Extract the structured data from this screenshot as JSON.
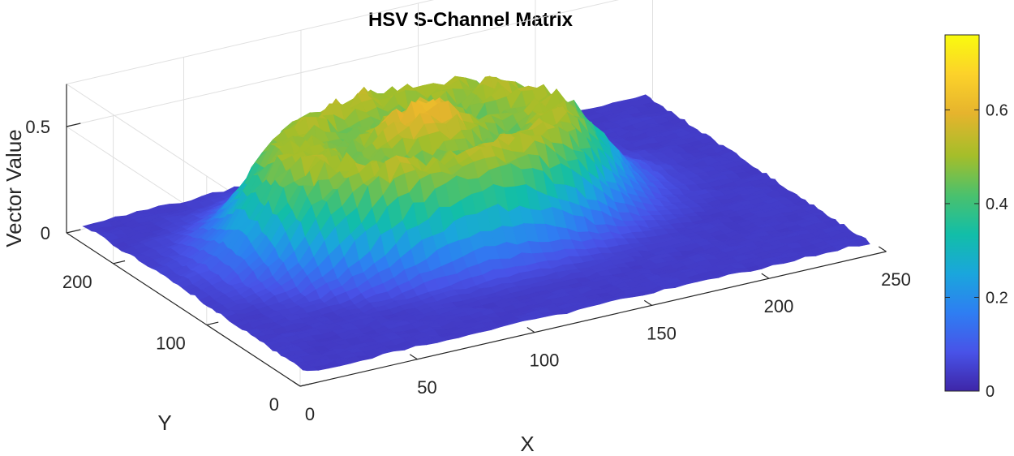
{
  "chart_data": {
    "type": "surface3d",
    "title": "HSV S-Channel Matrix",
    "xlabel": "X",
    "ylabel": "Y",
    "zlabel": "Vector Value",
    "xlim": [
      0,
      250
    ],
    "ylim": [
      0,
      250
    ],
    "zlim": [
      0,
      0.7
    ],
    "x_ticks": [
      "0",
      "50",
      "100",
      "150",
      "200",
      "250"
    ],
    "y_ticks": [
      "0",
      "100",
      "200"
    ],
    "z_ticks": [
      "0",
      "0.5"
    ],
    "colormap": "parula",
    "colorbar": {
      "range": [
        0,
        0.76
      ],
      "ticks": [
        "0",
        "0.2",
        "0.4",
        "0.6"
      ],
      "stops": [
        "#3e26a8",
        "#4853e8",
        "#2e7ef2",
        "#1aa6dc",
        "#12bea8",
        "#4ac16d",
        "#a4be2a",
        "#e6b42d",
        "#fcd22a",
        "#f9fb0e"
      ]
    },
    "surface": {
      "background_level": 0.04,
      "plateau_center": [
        112,
        148
      ],
      "plateau_radius": 72,
      "plateau_peak": 0.62,
      "ring_dip_level": 0.46,
      "description_values": "central raised region ~0.55-0.70 with a shallow ring-shaped dip, flat background near 0"
    }
  }
}
